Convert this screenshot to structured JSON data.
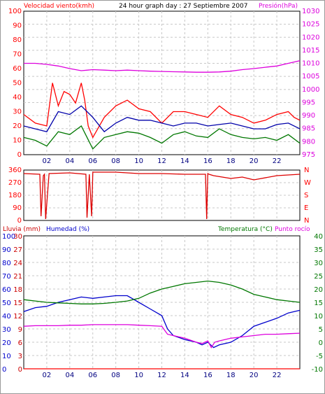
{
  "chart_data": [
    {
      "type": "line",
      "title": "24 hour graph day : 27 Septiembre 2007",
      "ylabel": "Velocidad viento(kmh)",
      "y2label": "Presión(hPa)",
      "ylim": [
        0,
        100
      ],
      "y2lim": [
        975,
        1030
      ],
      "yticks": [
        0,
        10,
        20,
        30,
        40,
        50,
        60,
        70,
        80,
        90,
        100
      ],
      "y2ticks": [
        975,
        980,
        985,
        990,
        995,
        1000,
        1005,
        1010,
        1015,
        1020,
        1025,
        1030
      ],
      "xlim": [
        0,
        24
      ],
      "xticks": [
        "02",
        "04",
        "06",
        "08",
        "10",
        "12",
        "14",
        "16",
        "18",
        "20",
        "22"
      ],
      "grid": true,
      "series": [
        {
          "name": "gust",
          "axis": "left",
          "color": "#ff0000",
          "x": [
            0,
            1,
            2,
            2.5,
            3,
            3.5,
            4,
            4.5,
            5,
            5.3,
            5.6,
            6,
            7,
            8,
            9,
            10,
            11,
            12,
            13,
            14,
            15,
            16,
            17,
            18,
            19,
            20,
            21,
            22,
            23,
            23.5,
            24
          ],
          "y": [
            28,
            22,
            20,
            50,
            34,
            44,
            42,
            36,
            50,
            38,
            20,
            12,
            26,
            34,
            38,
            32,
            30,
            22,
            30,
            30,
            28,
            26,
            34,
            28,
            26,
            22,
            24,
            28,
            30,
            26,
            24
          ]
        },
        {
          "name": "avg",
          "axis": "left",
          "color": "#0000aa",
          "x": [
            0,
            1,
            2,
            3,
            4,
            5,
            6,
            7,
            8,
            9,
            10,
            11,
            12,
            13,
            14,
            15,
            16,
            17,
            18,
            19,
            20,
            21,
            22,
            23,
            24
          ],
          "y": [
            20,
            18,
            16,
            30,
            28,
            34,
            26,
            16,
            22,
            26,
            24,
            24,
            22,
            20,
            22,
            22,
            20,
            21,
            22,
            20,
            18,
            18,
            21,
            22,
            18
          ]
        },
        {
          "name": "low",
          "axis": "left",
          "color": "#007700",
          "x": [
            0,
            1,
            2,
            3,
            4,
            5,
            6,
            7,
            8,
            9,
            10,
            11,
            12,
            13,
            14,
            15,
            16,
            17,
            18,
            19,
            20,
            21,
            22,
            23,
            24
          ],
          "y": [
            12,
            10,
            6,
            16,
            14,
            20,
            4,
            12,
            14,
            16,
            15,
            12,
            8,
            14,
            16,
            13,
            12,
            18,
            14,
            12,
            11,
            12,
            10,
            14,
            8
          ]
        },
        {
          "name": "pressure",
          "axis": "right",
          "color": "#dd00dd",
          "x": [
            0,
            1,
            2,
            3,
            4,
            5,
            6,
            7,
            8,
            9,
            10,
            11,
            12,
            13,
            14,
            15,
            16,
            17,
            18,
            19,
            20,
            21,
            22,
            23,
            24
          ],
          "y": [
            1010,
            1010,
            1009.6,
            1009,
            1008,
            1007.2,
            1007.6,
            1007.4,
            1007.2,
            1007.4,
            1007.2,
            1007,
            1006.9,
            1006.8,
            1006.7,
            1006.6,
            1006.6,
            1006.7,
            1007,
            1007.6,
            1008,
            1008.5,
            1009,
            1010,
            1011
          ]
        }
      ]
    },
    {
      "type": "line",
      "ylabel": "",
      "yticks": [
        "0",
        "90",
        "180",
        "270",
        "360"
      ],
      "y2ticks": [
        "N",
        "E",
        "S",
        "W",
        "N"
      ],
      "ylim": [
        0,
        360
      ],
      "xlim": [
        0,
        24
      ],
      "grid": true,
      "series": [
        {
          "name": "direction",
          "color": "#dd0000",
          "x": [
            0,
            1.4,
            1.5,
            1.7,
            1.8,
            1.9,
            2.2,
            4,
            5.4,
            5.5,
            5.7,
            5.9,
            6,
            8,
            10,
            12,
            14,
            15.8,
            15.9,
            16,
            16.1,
            16.5,
            18,
            19,
            20,
            22,
            24
          ],
          "y": [
            335,
            330,
            30,
            320,
            330,
            10,
            335,
            340,
            330,
            20,
            330,
            30,
            345,
            345,
            335,
            335,
            330,
            330,
            10,
            335,
            330,
            320,
            300,
            310,
            290,
            320,
            330
          ]
        }
      ]
    },
    {
      "type": "line",
      "ylabel": "Lluvia (mm)",
      "y2label": "Humedad (%)",
      "y3label": "Temperatura (°C)",
      "y4label": "Punto rocío",
      "xlim": [
        0,
        24
      ],
      "xticks": [
        "02",
        "04",
        "06",
        "08",
        "10",
        "12",
        "14",
        "16",
        "18",
        "20",
        "22"
      ],
      "rain_ticks": [
        0,
        3,
        6,
        9,
        12,
        15,
        18,
        21,
        24,
        27,
        30
      ],
      "humidity_ticks": [
        0,
        10,
        20,
        30,
        40,
        50,
        60,
        70,
        80,
        90,
        100
      ],
      "temp_ticks": [
        -10,
        -5,
        0,
        5,
        10,
        15,
        20,
        25,
        30,
        35,
        40
      ],
      "humidity_lim": [
        0,
        100
      ],
      "temp_lim": [
        -10,
        40
      ],
      "grid": true,
      "series": [
        {
          "name": "rain",
          "axis": "rain",
          "color": "#ff0000",
          "x": [
            0,
            24
          ],
          "y": [
            0,
            0
          ]
        },
        {
          "name": "humidity",
          "axis": "humidity",
          "color": "#0000cc",
          "x": [
            0,
            1,
            2,
            3,
            4,
            5,
            6,
            7,
            8,
            9,
            10,
            11,
            12,
            12.5,
            13,
            14,
            15,
            15.5,
            16,
            16.5,
            17,
            18,
            19,
            20,
            21,
            22,
            23,
            24
          ],
          "y": [
            43,
            46,
            47,
            50,
            52,
            54,
            53,
            54,
            55,
            55,
            50,
            45,
            40,
            30,
            25,
            22,
            20,
            18,
            20,
            16,
            18,
            20,
            25,
            32,
            35,
            38,
            42,
            44
          ]
        },
        {
          "name": "temperature",
          "axis": "temp",
          "color": "#007700",
          "x": [
            0,
            1,
            2,
            3,
            4,
            5,
            6,
            7,
            8,
            9,
            10,
            11,
            12,
            13,
            14,
            15,
            16,
            17,
            18,
            19,
            20,
            21,
            22,
            23,
            24
          ],
          "y": [
            16,
            15.5,
            15,
            14.8,
            14.6,
            14.4,
            14.4,
            14.6,
            15,
            15.5,
            16.5,
            18.5,
            20,
            21,
            22,
            22.5,
            23,
            22.5,
            21.5,
            20,
            18,
            17,
            16,
            15.5,
            15
          ]
        },
        {
          "name": "dewpoint",
          "axis": "temp",
          "color": "#dd00dd",
          "x": [
            0,
            1,
            2,
            3,
            4,
            5,
            6,
            7,
            8,
            9,
            10,
            11,
            12,
            12.5,
            13,
            14,
            15,
            15.5,
            16,
            16.3,
            16.6,
            17,
            18,
            19,
            20,
            21,
            22,
            23,
            24
          ],
          "y": [
            6,
            6.2,
            6.2,
            6.2,
            6.4,
            6.4,
            6.6,
            6.6,
            6.6,
            6.6,
            6.4,
            6.2,
            6,
            3,
            2.5,
            1.5,
            0,
            -0.5,
            0.5,
            -2,
            0,
            0.5,
            1.5,
            2,
            2.5,
            3,
            3,
            3.2,
            3.4
          ]
        }
      ]
    }
  ]
}
